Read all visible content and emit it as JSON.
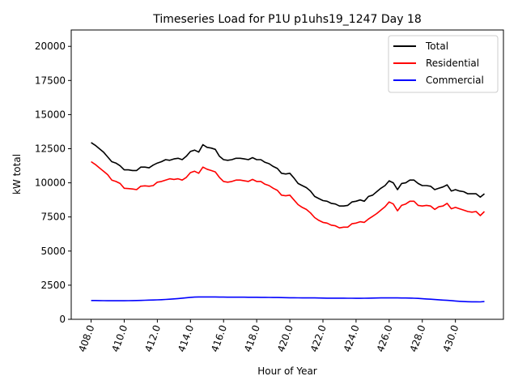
{
  "chart_data": {
    "type": "line",
    "title": "Timeseries Load for P1U p1uhs19_1247  Day 18",
    "xlabel": "Hour of Year",
    "ylabel": "kW total",
    "xlim": [
      406.8,
      432.9
    ],
    "ylim": [
      0,
      21200
    ],
    "xticks": [
      408,
      410,
      412,
      414,
      416,
      418,
      420,
      422,
      424,
      426,
      428,
      430
    ],
    "xtick_labels": [
      "408.0",
      "410.0",
      "412.0",
      "414.0",
      "416.0",
      "418.0",
      "420.0",
      "422.0",
      "424.0",
      "426.0",
      "428.0",
      "430.0"
    ],
    "yticks": [
      0,
      2500,
      5000,
      7500,
      10000,
      12500,
      15000,
      17500,
      20000
    ],
    "ytick_labels": [
      "0",
      "2500",
      "5000",
      "7500",
      "10000",
      "12500",
      "15000",
      "17500",
      "20000"
    ],
    "legend_position": "top-right",
    "x": [
      408.0,
      408.25,
      408.5,
      408.75,
      409.0,
      409.25,
      409.5,
      409.75,
      410.0,
      410.25,
      410.5,
      410.75,
      411.0,
      411.25,
      411.5,
      411.75,
      412.0,
      412.25,
      412.5,
      412.75,
      413.0,
      413.25,
      413.5,
      413.75,
      414.0,
      414.25,
      414.5,
      414.75,
      415.0,
      415.25,
      415.5,
      415.75,
      416.0,
      416.25,
      416.5,
      416.75,
      417.0,
      417.25,
      417.5,
      417.75,
      418.0,
      418.25,
      418.5,
      418.75,
      419.0,
      419.25,
      419.5,
      419.75,
      420.0,
      420.25,
      420.5,
      420.75,
      421.0,
      421.25,
      421.5,
      421.75,
      422.0,
      422.25,
      422.5,
      422.75,
      423.0,
      423.25,
      423.5,
      423.75,
      424.0,
      424.25,
      424.5,
      424.75,
      425.0,
      425.25,
      425.5,
      425.75,
      426.0,
      426.25,
      426.5,
      426.75,
      427.0,
      427.25,
      427.5,
      427.75,
      428.0,
      428.25,
      428.5,
      428.75,
      429.0,
      429.25,
      429.5,
      429.75,
      430.0,
      430.25,
      430.5,
      430.75,
      431.0,
      431.25,
      431.5,
      431.75
    ],
    "series": [
      {
        "name": "Total",
        "color": "#000000",
        "values": [
          12950,
          12750,
          12500,
          12250,
          11900,
          11550,
          11450,
          11250,
          10950,
          10950,
          10900,
          10900,
          11150,
          11150,
          11100,
          11300,
          11450,
          11550,
          11700,
          11650,
          11750,
          11800,
          11700,
          11950,
          12300,
          12400,
          12250,
          12800,
          12600,
          12550,
          12450,
          11950,
          11700,
          11650,
          11700,
          11800,
          11800,
          11750,
          11700,
          11850,
          11700,
          11700,
          11500,
          11400,
          11200,
          11050,
          10700,
          10650,
          10700,
          10350,
          9950,
          9800,
          9650,
          9400,
          9000,
          8850,
          8700,
          8650,
          8500,
          8450,
          8300,
          8300,
          8350,
          8600,
          8650,
          8750,
          8650,
          9000,
          9100,
          9350,
          9600,
          9800,
          10150,
          10000,
          9500,
          9950,
          10000,
          10200,
          10200,
          9950,
          9800,
          9800,
          9750,
          9500,
          9600,
          9700,
          9850,
          9400,
          9500,
          9400,
          9350,
          9200,
          9200,
          9200,
          8950,
          9200
        ]
      },
      {
        "name": "Residential",
        "color": "#ff0000",
        "values": [
          11550,
          11350,
          11100,
          10850,
          10600,
          10200,
          10100,
          9950,
          9600,
          9580,
          9550,
          9500,
          9750,
          9780,
          9750,
          9800,
          10050,
          10100,
          10200,
          10300,
          10250,
          10300,
          10200,
          10400,
          10750,
          10850,
          10700,
          11150,
          11000,
          10900,
          10800,
          10400,
          10100,
          10050,
          10100,
          10200,
          10200,
          10150,
          10100,
          10250,
          10100,
          10100,
          9900,
          9800,
          9600,
          9450,
          9100,
          9050,
          9100,
          8750,
          8400,
          8200,
          8050,
          7800,
          7450,
          7250,
          7100,
          7050,
          6900,
          6850,
          6700,
          6750,
          6750,
          7000,
          7050,
          7150,
          7100,
          7350,
          7550,
          7750,
          8000,
          8250,
          8600,
          8450,
          7950,
          8350,
          8450,
          8650,
          8650,
          8350,
          8300,
          8350,
          8300,
          8050,
          8250,
          8300,
          8500,
          8100,
          8200,
          8100,
          8000,
          7900,
          7850,
          7900,
          7600,
          7900
        ]
      },
      {
        "name": "Commercial",
        "color": "#0000ff",
        "values": [
          1380,
          1375,
          1370,
          1365,
          1360,
          1360,
          1360,
          1360,
          1360,
          1365,
          1370,
          1375,
          1385,
          1395,
          1405,
          1415,
          1425,
          1440,
          1455,
          1475,
          1495,
          1520,
          1550,
          1580,
          1610,
          1630,
          1640,
          1640,
          1640,
          1640,
          1640,
          1630,
          1625,
          1620,
          1620,
          1620,
          1620,
          1620,
          1615,
          1615,
          1615,
          1610,
          1610,
          1605,
          1600,
          1600,
          1590,
          1585,
          1580,
          1580,
          1575,
          1570,
          1565,
          1565,
          1565,
          1560,
          1555,
          1550,
          1550,
          1550,
          1550,
          1550,
          1545,
          1545,
          1540,
          1540,
          1545,
          1550,
          1555,
          1560,
          1565,
          1565,
          1565,
          1565,
          1565,
          1560,
          1560,
          1555,
          1545,
          1530,
          1510,
          1490,
          1470,
          1450,
          1430,
          1410,
          1390,
          1370,
          1345,
          1320,
          1300,
          1290,
          1285,
          1280,
          1275,
          1300
        ]
      }
    ]
  }
}
